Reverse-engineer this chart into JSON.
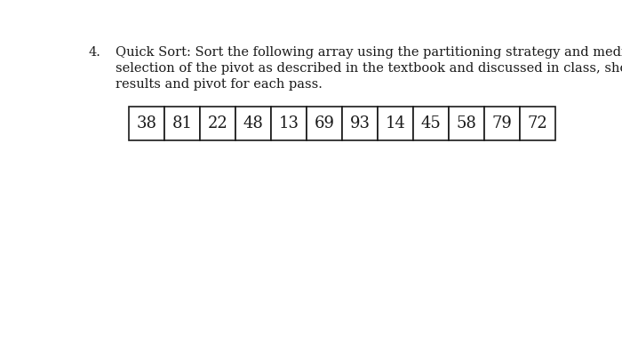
{
  "question_number": "4.",
  "question_text_line1": "Quick Sort: Sort the following array using the partitioning strategy and median-of-three",
  "question_text_line2": "selection of the pivot as described in the textbook and discussed in class, showing the",
  "question_text_line3": "results and pivot for each pass.",
  "array_values": [
    "38",
    "81",
    "22",
    "48",
    "13",
    "69",
    "93",
    "14",
    "45",
    "58",
    "79",
    "72"
  ],
  "background_color": "#ffffff",
  "text_color": "#1a1a1a",
  "box_border_color": "#1a1a1a",
  "font_size_text": 10.5,
  "font_size_number": 13,
  "font_family": "DejaVu Serif"
}
